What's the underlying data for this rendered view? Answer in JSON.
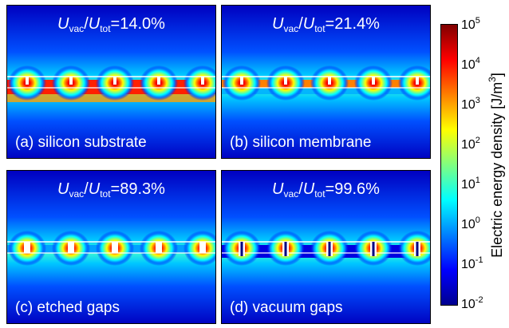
{
  "panels": [
    {
      "id": "a",
      "ratio_value": "=14.0%",
      "label": "(a) silicon substrate",
      "layout": "substrate"
    },
    {
      "id": "b",
      "ratio_value": "=21.4%",
      "label": "(b) silicon membrane",
      "layout": "membrane"
    },
    {
      "id": "c",
      "ratio_value": "=89.3%",
      "label": "(c) etched gaps",
      "layout": "etched"
    },
    {
      "id": "d",
      "ratio_value": "=99.6%",
      "label": "(d) vacuum gaps",
      "layout": "vacuum"
    }
  ],
  "ratio": {
    "num": "U",
    "num_sub": "vac",
    "sep": "/",
    "den": "U",
    "den_sub": "tot"
  },
  "colorbar": {
    "title": "Electric energy density [J/m",
    "title_sup": "3",
    "title_end": "]",
    "ticks": [
      {
        "base": "10",
        "exp": "5"
      },
      {
        "base": "10",
        "exp": "4"
      },
      {
        "base": "10",
        "exp": "3"
      },
      {
        "base": "10",
        "exp": "2"
      },
      {
        "base": "10",
        "exp": "1"
      },
      {
        "base": "10",
        "exp": "0"
      },
      {
        "base": "10",
        "exp": "-1"
      },
      {
        "base": "10",
        "exp": "-2"
      }
    ],
    "colormap": [
      "#00008f",
      "#0000ff",
      "#0080ff",
      "#00ffff",
      "#80ff80",
      "#ffff00",
      "#ff8000",
      "#ff0000",
      "#800000"
    ]
  }
}
